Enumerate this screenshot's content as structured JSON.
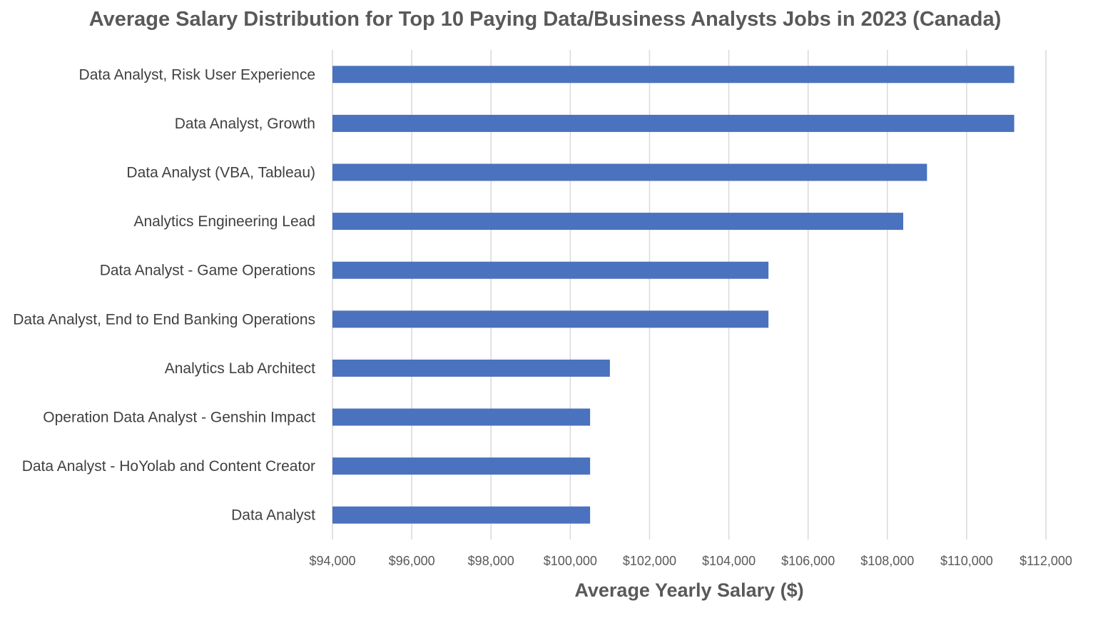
{
  "chart_data": {
    "type": "bar",
    "orientation": "horizontal",
    "title": "Average Salary Distribution for Top 10 Paying Data/Business Analysts Jobs in 2023 (Canada)",
    "xlabel": "Average Yearly Salary ($)",
    "ylabel": "",
    "xlim": [
      94000,
      112000
    ],
    "xticks": [
      "$94,000",
      "$96,000",
      "$98,000",
      "$100,000",
      "$102,000",
      "$104,000",
      "$106,000",
      "$108,000",
      "$110,000",
      "$112,000"
    ],
    "grid": "vertical",
    "legend": "none",
    "bar_color": "#4a72be",
    "categories": [
      "Data Analyst, Risk User Experience",
      "Data Analyst, Growth",
      "Data Analyst (VBA, Tableau)",
      "Analytics Engineering Lead",
      "Data Analyst - Game Operations",
      "Data Analyst, End to End Banking Operations",
      "Analytics Lab Architect",
      "Operation Data Analyst - Genshin Impact",
      "Data Analyst - HoYolab and Content Creator",
      "Data Analyst"
    ],
    "values": [
      111200,
      111200,
      109000,
      108400,
      105000,
      105000,
      101000,
      100500,
      100500,
      100500
    ]
  }
}
